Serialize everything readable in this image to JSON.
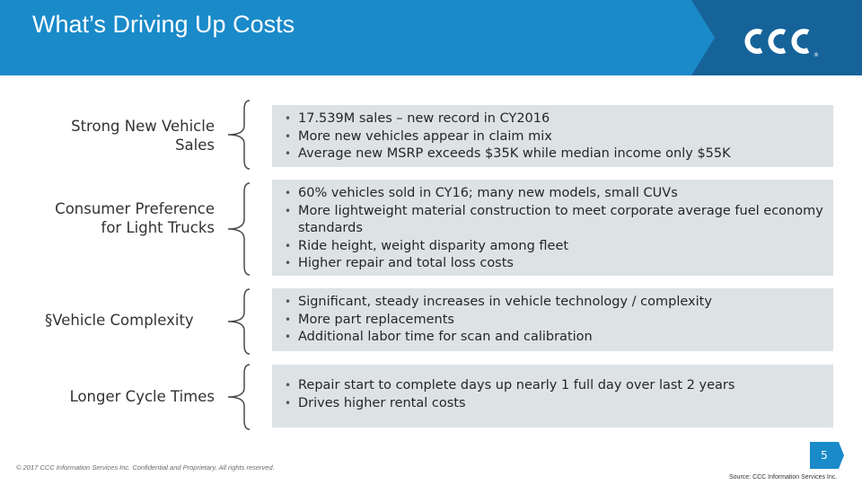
{
  "header": {
    "title": "What’s Driving Up Costs",
    "logo_text": "CCC"
  },
  "rows": [
    {
      "label": "Strong New Vehicle Sales",
      "bullets": [
        "17.539M sales – new record in CY2016",
        "More new vehicles appear in claim mix",
        "Average new MSRP exceeds $35K while median income only $55K"
      ]
    },
    {
      "label": "Consumer Preference for Light Trucks",
      "bullets": [
        "60% vehicles sold in CY16; many new models, small CUVs",
        "More lightweight material construction to meet corporate average fuel economy standards",
        "Ride height, weight disparity among fleet",
        "Higher repair and total loss costs"
      ]
    },
    {
      "label": "§Vehicle Complexity",
      "bullets": [
        "Significant, steady increases in vehicle technology / complexity",
        "More part replacements",
        "Additional labor time for scan and calibration"
      ]
    },
    {
      "label": "Longer Cycle Times",
      "bullets": [
        "Repair start to complete days up nearly 1 full day over last 2 years",
        "Drives higher rental costs"
      ]
    }
  ],
  "footer": {
    "copyright": "© 2017 CCC Information Services Inc. Confidential and Proprietary. All rights reserved.",
    "page_number": "5",
    "source": "Source: CCC Information Services Inc."
  },
  "colors": {
    "header_blue": "#1a8ac9",
    "header_dark_blue": "#16639a",
    "box_gray": "#dde2e5"
  }
}
